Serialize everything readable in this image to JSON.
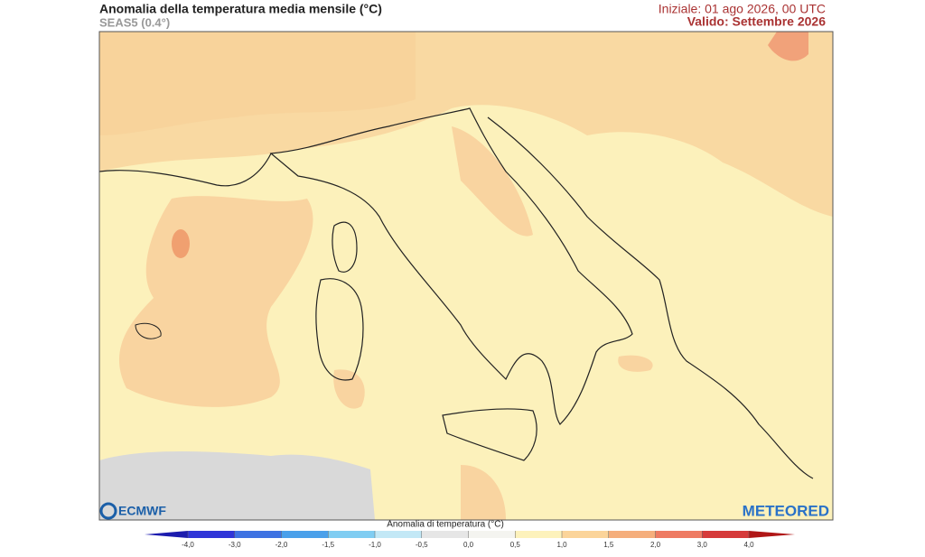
{
  "header": {
    "title": "Anomalia della temperatura media mensile (°C)",
    "subtitle": "SEAS5 (0.4°)",
    "init": "Iniziale: 01 ago 2026, 00 UTC",
    "valid": "Valido: Settembre 2026"
  },
  "logos": {
    "left": "ECMWF",
    "right": "METEORED"
  },
  "legend": {
    "title": "Anomalia di temperatura (°C)",
    "ticks": [
      "-4,0",
      "-3,0",
      "-2,0",
      "-1,5",
      "-1,0",
      "-0,5",
      "0,0",
      "0,5",
      "1,0",
      "1,5",
      "2,0",
      "3,0",
      "4,0"
    ],
    "colors": [
      "#2f35d8",
      "#3e72e2",
      "#4aa0ea",
      "#80cdf2",
      "#c3e8f6",
      "#e6e6e6",
      "#f4f4f0",
      "#fdf2bc",
      "#fbd49a",
      "#f5ae7c",
      "#ee7a62",
      "#d63a3a"
    ],
    "low_color": "#1c1cae",
    "high_color": "#b01616"
  }
}
